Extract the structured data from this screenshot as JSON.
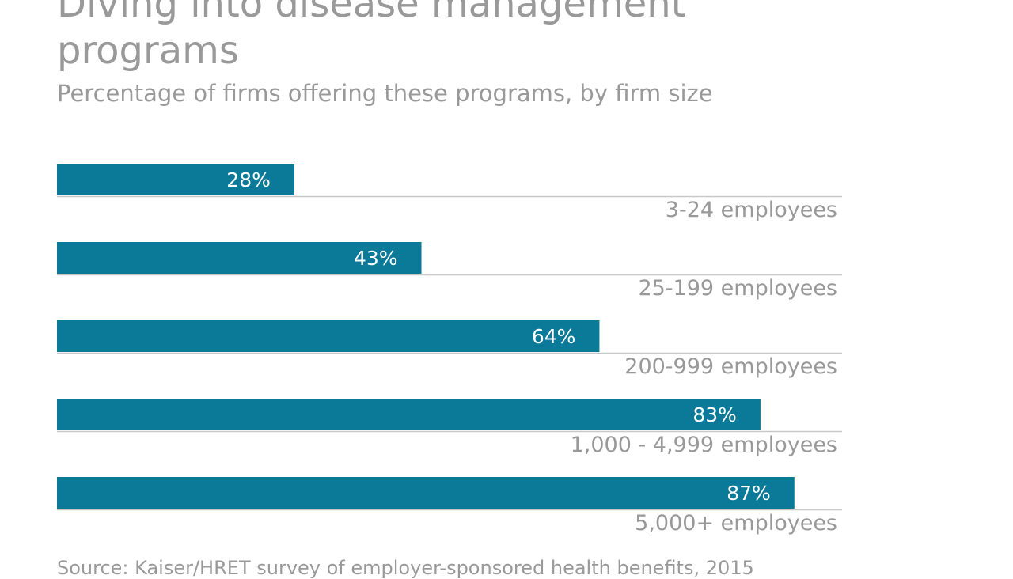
{
  "chart_data": {
    "type": "bar",
    "orientation": "horizontal",
    "title": "Diving into disease management programs",
    "subtitle": "Percentage of firms offering these programs, by firm size",
    "source": "Source: Kaiser/HRET survey of employer-sponsored health benefits, 2015",
    "categories": [
      "3-24 employees",
      "25-199 employees",
      "200-999 employees",
      "1,000 - 4,999 employees",
      "5,000+ employees"
    ],
    "values": [
      28,
      43,
      64,
      83,
      87
    ],
    "data_labels": [
      "28%",
      "43%",
      "64%",
      "83%",
      "87%"
    ],
    "xlim": [
      0,
      100
    ],
    "grid": false,
    "bar_color": "#0b7a99",
    "text_color": "#999999"
  }
}
